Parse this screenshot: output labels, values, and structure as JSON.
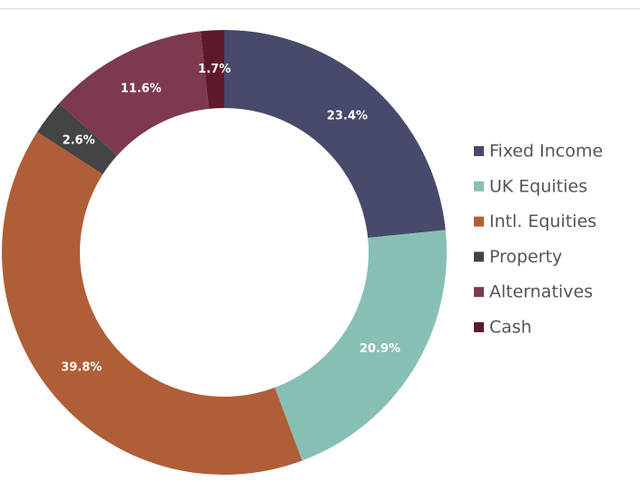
{
  "chart_data": {
    "type": "donut",
    "categories": [
      "Fixed Income",
      "UK Equities",
      "Intl. Equities",
      "Property",
      "Alternatives",
      "Cash"
    ],
    "values": [
      23.4,
      20.9,
      39.8,
      2.6,
      11.6,
      1.7
    ],
    "value_labels": [
      "23.4%",
      "20.9%",
      "39.8%",
      "2.6%",
      "11.6%",
      "1.7%"
    ],
    "colors": [
      "#474a6b",
      "#87bfb5",
      "#b05e37",
      "#444444",
      "#7d3a4e",
      "#5e1a2b"
    ],
    "legend": "right"
  }
}
